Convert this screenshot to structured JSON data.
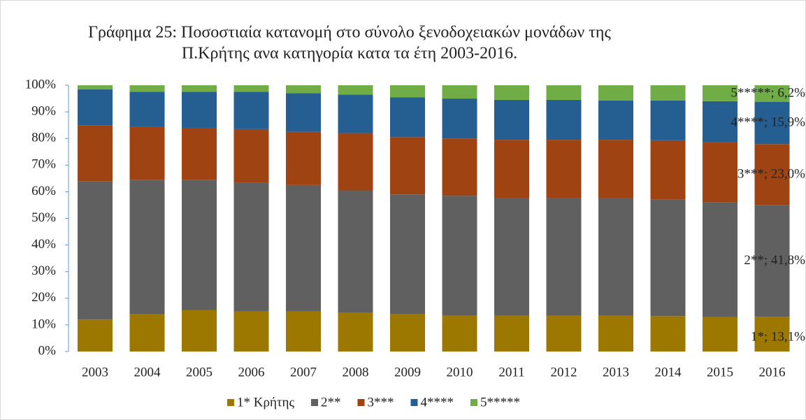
{
  "chart_data": {
    "type": "stacked_bar",
    "title": "Γράφημα 25: Ποσοστιαία κατανομή στο σύνολο ξενοδοχειακών μονάδων της",
    "subtitle": "Π.Κρήτης ανα κατηγορία κατα τα έτη 2003-2016.",
    "categories": [
      "2003",
      "2004",
      "2005",
      "2006",
      "2007",
      "2008",
      "2009",
      "2010",
      "2011",
      "2012",
      "2013",
      "2014",
      "2015",
      "2016"
    ],
    "series": [
      {
        "name": "1* Κρήτης",
        "color": "#9c7800",
        "values": [
          12,
          14,
          15.5,
          15,
          15,
          14.5,
          14,
          13.5,
          13.5,
          13.5,
          13.5,
          13.3,
          13,
          13.1
        ],
        "value_labels": [
          null,
          null,
          null,
          null,
          null,
          null,
          null,
          null,
          null,
          null,
          null,
          null,
          null,
          "1*; 13,1%"
        ]
      },
      {
        "name": "2**",
        "color": "#606060",
        "values": [
          52,
          50.5,
          49,
          48.5,
          47.5,
          46,
          45,
          45,
          44,
          44,
          44,
          43.7,
          43,
          41.8
        ],
        "value_labels": [
          null,
          null,
          null,
          null,
          null,
          null,
          null,
          null,
          null,
          null,
          null,
          null,
          null,
          "2**; 41,8%"
        ]
      },
      {
        "name": "3***",
        "color": "#9e4311",
        "values": [
          21,
          20,
          19.5,
          20,
          20,
          21.5,
          21.5,
          21.5,
          22,
          22,
          22,
          22.3,
          22.5,
          23.0
        ],
        "value_labels": [
          null,
          null,
          null,
          null,
          null,
          null,
          null,
          null,
          null,
          null,
          null,
          null,
          null,
          "3***; 23,0%"
        ]
      },
      {
        "name": "4****",
        "color": "#255e91",
        "values": [
          13.5,
          13,
          13.5,
          14,
          14.5,
          14.5,
          15,
          15,
          15,
          15,
          14.8,
          15,
          15.5,
          15.9
        ],
        "value_labels": [
          null,
          null,
          null,
          null,
          null,
          null,
          null,
          null,
          null,
          null,
          null,
          null,
          null,
          "4****; 15,9%"
        ]
      },
      {
        "name": "5*****",
        "color": "#70ad47",
        "values": [
          1.5,
          2.5,
          2.5,
          2.5,
          3,
          3.5,
          4.5,
          5,
          5.5,
          5.5,
          5.7,
          5.7,
          6,
          6.2
        ],
        "value_labels": [
          null,
          null,
          null,
          null,
          null,
          null,
          null,
          null,
          null,
          null,
          null,
          null,
          null,
          "5*****; 6,2%"
        ]
      }
    ],
    "ylim": [
      0,
      100
    ],
    "yticks": [
      {
        "value": 0,
        "label": "0%"
      },
      {
        "value": 10,
        "label": "10%"
      },
      {
        "value": 20,
        "label": "20%"
      },
      {
        "value": 30,
        "label": "30%"
      },
      {
        "value": 40,
        "label": "40%"
      },
      {
        "value": 50,
        "label": "50%"
      },
      {
        "value": 60,
        "label": "60%"
      },
      {
        "value": 70,
        "label": "70%"
      },
      {
        "value": 80,
        "label": "80%"
      },
      {
        "value": 90,
        "label": "90%"
      },
      {
        "value": 100,
        "label": "100%"
      }
    ],
    "legend": "bottom"
  }
}
